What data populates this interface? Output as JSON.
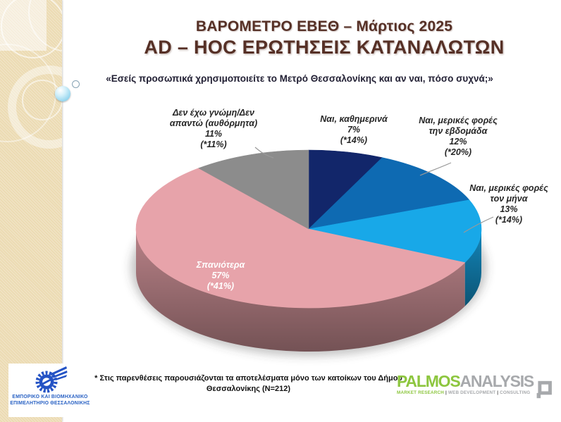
{
  "slide": {
    "title_line1": "ΒΑΡΟΜΕΤΡΟ ΕΒΕΘ – Μάρτιος 2025",
    "title_line2": "AD – HOC ΕΡΩΤΗΣΕΙΣ ΚΑΤΑΝΑΛΩΤΩΝ",
    "question": "«Εσείς προσωπικά χρησιμοποιείτε το Μετρό Θεσσαλονίκης και αν ναι, πόσο συχνά;»",
    "footnote_line1": "* Στις παρενθέσεις παρουσιάζονται τα αποτελέσματα μόνο των κατοίκων του Δήμου",
    "footnote_line2": "Θεσσαλονίκης (N=212)",
    "title_color": "#563026"
  },
  "chart_data": {
    "type": "pie",
    "style": "3d",
    "title": "«Εσείς προσωπικά χρησιμοποιείτε το Μετρό Θεσσαλονίκης και αν ναι, πόσο συχνά;»",
    "note": "* Στις παρενθέσεις παρουσιάζονται τα αποτελέσματα μόνο των κατοίκων του Δήμου Θεσσαλονίκης (N=212)",
    "direction": "clockwise",
    "start_angle_deg_from_top": 0,
    "legend_position": "callout-labels",
    "series": [
      {
        "label": "Ναι, καθημερινά",
        "value": 7,
        "municipality_value": 14,
        "color": "#12266a"
      },
      {
        "label": "Ναι, μερικές φορές την εβδομάδα",
        "value": 12,
        "municipality_value": 20,
        "color": "#0e6ab2"
      },
      {
        "label": "Ναι, μερικές φορές τον μήνα",
        "value": 13,
        "municipality_value": 14,
        "color": "#18a8e8"
      },
      {
        "label": "Σπανιότερα",
        "value": 57,
        "municipality_value": 41,
        "color": "#e7a3aa"
      },
      {
        "label": "Δεν έχω γνώμη/Δεν απαντώ (αυθόρμητα)",
        "value": 11,
        "municipality_value": 11,
        "color": "#8c8c8c"
      }
    ]
  },
  "callouts": {
    "none_label": {
      "line1": "Δεν έχω γνώμη/Δεν",
      "line2": "απαντώ (αυθόρμητα)",
      "line3": "11%",
      "line4": "(*11%)"
    },
    "daily": {
      "line1": "Ναι, καθημερινά",
      "line2": "7%",
      "line3": "(*14%)"
    },
    "weekly": {
      "line1": "Ναι, μερικές φορές",
      "line2": "την εβδομάδα",
      "line3": "12%",
      "line4": "(*20%)"
    },
    "monthly": {
      "line1": "Ναι, μερικές φορές",
      "line2": "τον μήνα",
      "line3": "13%",
      "line4": "(*14%)"
    },
    "rarely": {
      "line1": "Σπανιότερα",
      "line2": "57%",
      "line3": "(*41%)"
    }
  },
  "logos": {
    "ebeh": {
      "line1": "ΕΜΠΟΡΙΚΟ ΚΑΙ ΒΙΟΜΗΧΑΝΙΚΟ",
      "line2": "ΕΠΙΜΕΛΗΤΗΡΙΟ ΘΕΣΣΑΛΟΝΙΚΗΣ",
      "color": "#2a62c4"
    },
    "palmos": {
      "name_part1": "PALMOS",
      "name_part2": "ANALYSIS",
      "tagline_part1": "MARKET RESEARCH",
      "tagline_sep1": "|",
      "tagline_part2": "WEB DEVELOPMENT",
      "tagline_sep2": "|",
      "tagline_part3": "CONSULTING",
      "green": "#8dc63f",
      "gray": "#a7a9ac"
    }
  }
}
